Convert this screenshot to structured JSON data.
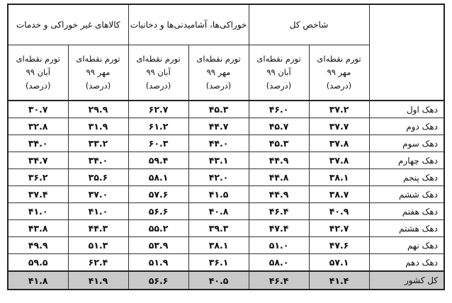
{
  "table": {
    "group_headers": {
      "total_index": "شاخص کل",
      "food": "خوراکی‌ها، آشامیدنی‌ها و دخانیات",
      "non_food": "کالاهای غیر خوراکی و خدمات"
    },
    "sub_headers": {
      "mehr": {
        "line1": "تورم نقطه‌ای",
        "line2": "مهر ۹۹",
        "line3": "(درصد)"
      },
      "aban": {
        "line1": "تورم نقطه‌ای",
        "line2": "آبان ۹۹",
        "line3": "(درصد)"
      }
    },
    "rows": [
      {
        "label": "دهک اول",
        "total_mehr": "۳۷.۲",
        "total_aban": "۴۶.۰",
        "food_mehr": "۴۵.۳",
        "food_aban": "۶۲.۷",
        "nonfood_mehr": "۲۹.۹",
        "nonfood_aban": "۳۰.۷"
      },
      {
        "label": "دهک دوم",
        "total_mehr": "۳۷.۷",
        "total_aban": "۴۵.۷",
        "food_mehr": "۴۴.۷",
        "food_aban": "۶۱.۲",
        "nonfood_mehr": "۳۱.۹",
        "nonfood_aban": "۳۲.۸"
      },
      {
        "label": "دهک سوم",
        "total_mehr": "۳۷.۸",
        "total_aban": "۴۵.۳",
        "food_mehr": "۴۴.۰",
        "food_aban": "۶۰.۳",
        "nonfood_mehr": "۳۳.۲",
        "nonfood_aban": "۳۴.۰"
      },
      {
        "label": "دهک چهارم",
        "total_mehr": "۳۷.۸",
        "total_aban": "۴۴.۹",
        "food_mehr": "۴۳.۱",
        "food_aban": "۵۹.۴",
        "nonfood_mehr": "۳۴.۰",
        "nonfood_aban": "۳۴.۷"
      },
      {
        "label": "دهک پنجم",
        "total_mehr": "۳۸.۱",
        "total_aban": "۴۴.۸",
        "food_mehr": "۴۲.۰",
        "food_aban": "۵۸.۱",
        "nonfood_mehr": "۳۵.۶",
        "nonfood_aban": "۳۶.۲"
      },
      {
        "label": "دهک ششم",
        "total_mehr": "۳۸.۷",
        "total_aban": "۴۴.۹",
        "food_mehr": "۴۱.۵",
        "food_aban": "۵۷.۶",
        "nonfood_mehr": "۳۷.۰",
        "nonfood_aban": "۳۷.۴"
      },
      {
        "label": "دهک هفتم",
        "total_mehr": "۴۰.۹",
        "total_aban": "۴۶.۴",
        "food_mehr": "۴۰.۸",
        "food_aban": "۵۶.۶",
        "nonfood_mehr": "۴۱.۰",
        "nonfood_aban": "۴۱.۰"
      },
      {
        "label": "دهک هشتم",
        "total_mehr": "۴۲.۷",
        "total_aban": "۴۷.۴",
        "food_mehr": "۳۹.۳",
        "food_aban": "۵۵.۲",
        "nonfood_mehr": "۴۴.۳",
        "nonfood_aban": "۴۳.۸"
      },
      {
        "label": "دهک نهم",
        "total_mehr": "۴۷.۶",
        "total_aban": "۵۱.۰",
        "food_mehr": "۳۸.۱",
        "food_aban": "۵۳.۹",
        "nonfood_mehr": "۵۱.۳",
        "nonfood_aban": "۴۹.۹"
      },
      {
        "label": "دهک دهم",
        "total_mehr": "۵۷.۱",
        "total_aban": "۵۸.۰",
        "food_mehr": "۳۶.۱",
        "food_aban": "۵۱.۹",
        "nonfood_mehr": "۶۲.۴",
        "nonfood_aban": "۵۹.۵"
      }
    ],
    "total_row": {
      "label": "کل کشور",
      "total_mehr": "۴۱.۴",
      "total_aban": "۴۶.۴",
      "food_mehr": "۴۰.۵",
      "food_aban": "۵۶.۶",
      "nonfood_mehr": "۴۱.۹",
      "nonfood_aban": "۴۱.۸"
    },
    "colors": {
      "border": "#333333",
      "total_row_bg": "#c9c9c9"
    }
  }
}
